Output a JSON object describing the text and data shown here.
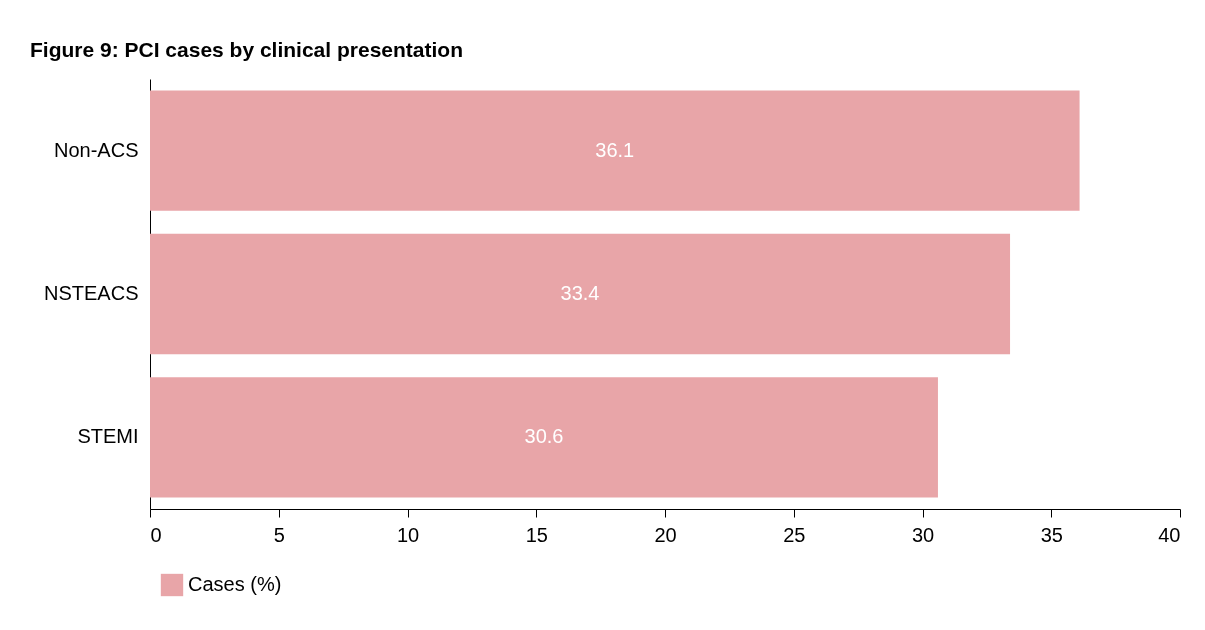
{
  "chart_data": {
    "type": "bar",
    "orientation": "horizontal",
    "title": "Figure 9: PCI cases by clinical presentation",
    "categories": [
      "Non-ACS",
      "NSTEACS",
      "STEMI"
    ],
    "series": [
      {
        "name": "Cases (%)",
        "color": "#e8a5a8",
        "values": [
          36.1,
          33.4,
          30.6
        ]
      }
    ],
    "xlim": [
      0,
      40
    ],
    "xticks": [
      0,
      5,
      10,
      15,
      20,
      25,
      30,
      35,
      40
    ],
    "data_labels": true,
    "grid": false,
    "legend": "bottom"
  }
}
